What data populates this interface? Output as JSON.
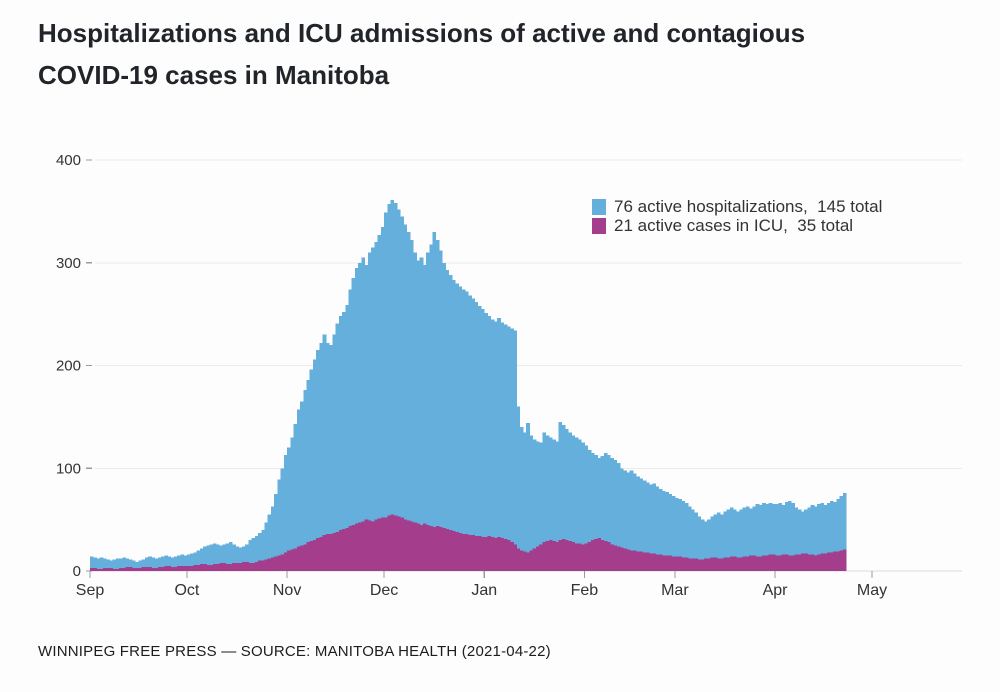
{
  "title": {
    "line1": "Hospitalizations and ICU admissions of active and contagious",
    "line2": "COVID-19 cases in Manitoba"
  },
  "legend": {
    "items": [
      {
        "label": "76 active hospitalizations,  145 total",
        "color": "#64afdc"
      },
      {
        "label": "21 active cases in ICU,  35 total",
        "color": "#a43e8c"
      }
    ]
  },
  "footer": {
    "credit": "WINNIPEG FREE PRESS — SOURCE: MANITOBA HEALTH (2021-04-22)"
  },
  "colors": {
    "hospitalizations": "#64afdc",
    "icu": "#a43e8c",
    "gridline": "#ebebeb",
    "baseline": "#dcdcdc",
    "tick": "#9a9a9a",
    "axis_text": "#333333"
  },
  "chart_data": {
    "type": "bar",
    "title": "Hospitalizations and ICU admissions of active and contagious COVID-19 cases in Manitoba",
    "xlabel": "",
    "ylabel": "",
    "grid": true,
    "legend_position": "top-right",
    "x_axis": {
      "tick_labels": [
        "Sep",
        "Oct",
        "Nov",
        "Dec",
        "Jan",
        "Feb",
        "Mar",
        "Apr",
        "May"
      ],
      "tick_day_offsets": [
        0,
        30,
        61,
        91,
        122,
        153,
        181,
        212,
        242
      ],
      "start_date": "2020-09-01",
      "end_date": "2021-04-22"
    },
    "y_axis": {
      "ticks": [
        0,
        100,
        200,
        300,
        400
      ],
      "range": [
        0,
        420
      ]
    },
    "series": [
      {
        "name": "active hospitalizations",
        "current": 76,
        "total": 145,
        "color": "#64afdc",
        "values": [
          14,
          13,
          12,
          13,
          12,
          11,
          10,
          11,
          12,
          12,
          13,
          12,
          11,
          10,
          9,
          10,
          11,
          13,
          14,
          13,
          12,
          13,
          14,
          15,
          14,
          13,
          14,
          15,
          16,
          15,
          16,
          17,
          18,
          20,
          22,
          24,
          25,
          26,
          27,
          26,
          25,
          26,
          27,
          28,
          26,
          24,
          23,
          24,
          26,
          30,
          32,
          34,
          37,
          40,
          47,
          55,
          63,
          75,
          89,
          100,
          113,
          120,
          130,
          143,
          157,
          165,
          176,
          186,
          196,
          206,
          215,
          222,
          230,
          222,
          220,
          230,
          241,
          248,
          252,
          259,
          274,
          285,
          295,
          300,
          305,
          298,
          310,
          315,
          320,
          327,
          335,
          349,
          357,
          361,
          358,
          352,
          345,
          337,
          330,
          322,
          310,
          302,
          305,
          298,
          310,
          318,
          330,
          322,
          312,
          300,
          293,
          288,
          283,
          280,
          277,
          274,
          272,
          268,
          265,
          262,
          258,
          255,
          251,
          248,
          245,
          243,
          246,
          242,
          240,
          238,
          236,
          234,
          160,
          140,
          135,
          144,
          132,
          128,
          126,
          125,
          135,
          132,
          130,
          128,
          126,
          145,
          142,
          138,
          135,
          132,
          130,
          128,
          125,
          122,
          118,
          115,
          113,
          110,
          112,
          115,
          113,
          110,
          108,
          105,
          100,
          98,
          96,
          98,
          95,
          92,
          90,
          88,
          86,
          84,
          85,
          82,
          80,
          78,
          77,
          75,
          73,
          71,
          70,
          68,
          66,
          63,
          60,
          57,
          53,
          50,
          48,
          50,
          53,
          55,
          57,
          55,
          58,
          60,
          62,
          60,
          58,
          60,
          62,
          63,
          61,
          63,
          65,
          64,
          66,
          65,
          66,
          65,
          65,
          66,
          64,
          67,
          68,
          66,
          62,
          60,
          58,
          60,
          62,
          64,
          63,
          65,
          66,
          64,
          66,
          68,
          67,
          70,
          73,
          76
        ]
      },
      {
        "name": "active cases in ICU",
        "current": 21,
        "total": 35,
        "color": "#a43e8c",
        "values": [
          3,
          3,
          2,
          2,
          3,
          3,
          3,
          2,
          2,
          3,
          3,
          4,
          4,
          3,
          3,
          3,
          4,
          4,
          4,
          3,
          3,
          4,
          4,
          5,
          5,
          4,
          4,
          5,
          5,
          5,
          5,
          5,
          6,
          6,
          7,
          7,
          6,
          6,
          7,
          7,
          8,
          8,
          7,
          7,
          8,
          8,
          8,
          9,
          9,
          8,
          8,
          9,
          10,
          10,
          11,
          12,
          13,
          14,
          15,
          16,
          18,
          20,
          21,
          22,
          24,
          25,
          26,
          28,
          29,
          30,
          32,
          33,
          35,
          36,
          36,
          37,
          38,
          40,
          41,
          42,
          44,
          45,
          46,
          47,
          48,
          50,
          49,
          48,
          50,
          51,
          52,
          52,
          54,
          55,
          54,
          53,
          52,
          50,
          49,
          48,
          47,
          46,
          45,
          46,
          45,
          44,
          43,
          44,
          43,
          42,
          41,
          40,
          39,
          38,
          37,
          36,
          36,
          35,
          35,
          34,
          34,
          33,
          33,
          34,
          33,
          32,
          33,
          32,
          31,
          30,
          28,
          26,
          22,
          20,
          19,
          18,
          20,
          22,
          24,
          26,
          28,
          29,
          30,
          29,
          28,
          30,
          31,
          30,
          29,
          28,
          27,
          27,
          26,
          27,
          28,
          30,
          31,
          32,
          30,
          29,
          28,
          26,
          25,
          24,
          23,
          22,
          21,
          20,
          20,
          19,
          19,
          18,
          18,
          17,
          17,
          16,
          16,
          15,
          15,
          15,
          14,
          14,
          14,
          13,
          13,
          12,
          12,
          12,
          11,
          11,
          12,
          12,
          13,
          13,
          12,
          12,
          13,
          13,
          14,
          14,
          13,
          13,
          14,
          14,
          15,
          15,
          14,
          14,
          15,
          15,
          16,
          16,
          15,
          15,
          16,
          16,
          15,
          15,
          16,
          16,
          17,
          17,
          16,
          16,
          15,
          16,
          17,
          17,
          18,
          18,
          19,
          19,
          20,
          21
        ]
      }
    ]
  }
}
